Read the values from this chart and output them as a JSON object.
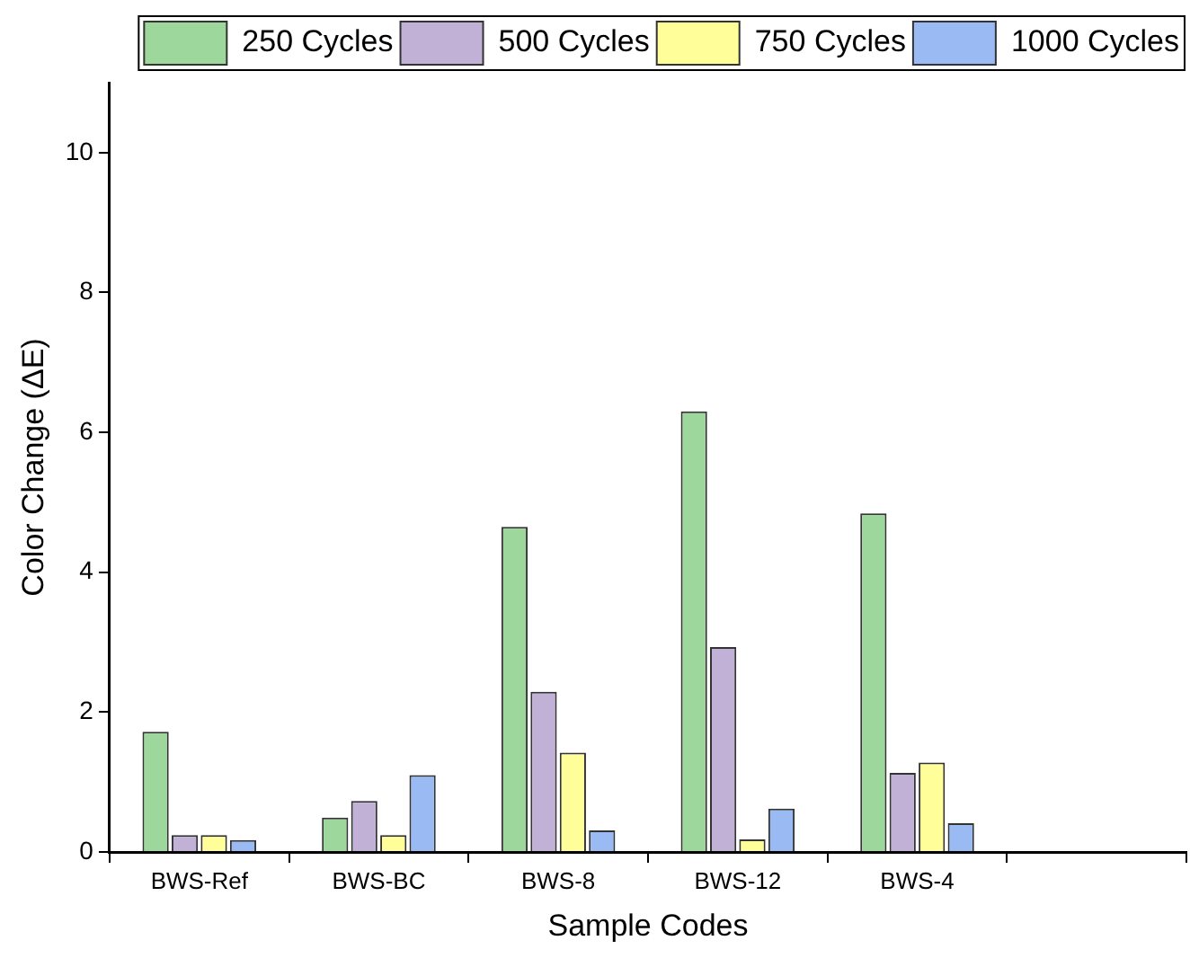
{
  "chart_data": {
    "type": "bar",
    "xlabel": "Sample Codes",
    "ylabel": "Color Change (ΔE)",
    "categories": [
      "BWS-Ref",
      "BWS-BC",
      "BWS-8",
      "BWS-12",
      "BWS-4",
      null
    ],
    "series": [
      {
        "name": "250 Cycles",
        "color": "#9ed79b",
        "values": [
          1.72,
          0.49,
          4.65,
          6.3,
          4.84,
          null
        ]
      },
      {
        "name": "500 Cycles",
        "color": "#c2b1d7",
        "values": [
          0.24,
          0.73,
          2.29,
          2.93,
          1.13,
          null
        ]
      },
      {
        "name": "750 Cycles",
        "color": "#fffe99",
        "values": [
          0.24,
          0.24,
          1.42,
          0.18,
          1.28,
          null
        ]
      },
      {
        "name": "1000 Cycles",
        "color": "#99baf2",
        "values": [
          0.17,
          1.1,
          0.31,
          0.62,
          0.41,
          null
        ]
      }
    ],
    "ylim": [
      0,
      11
    ],
    "yticks": [
      0,
      2,
      4,
      6,
      8,
      10
    ],
    "legend": "top right"
  }
}
